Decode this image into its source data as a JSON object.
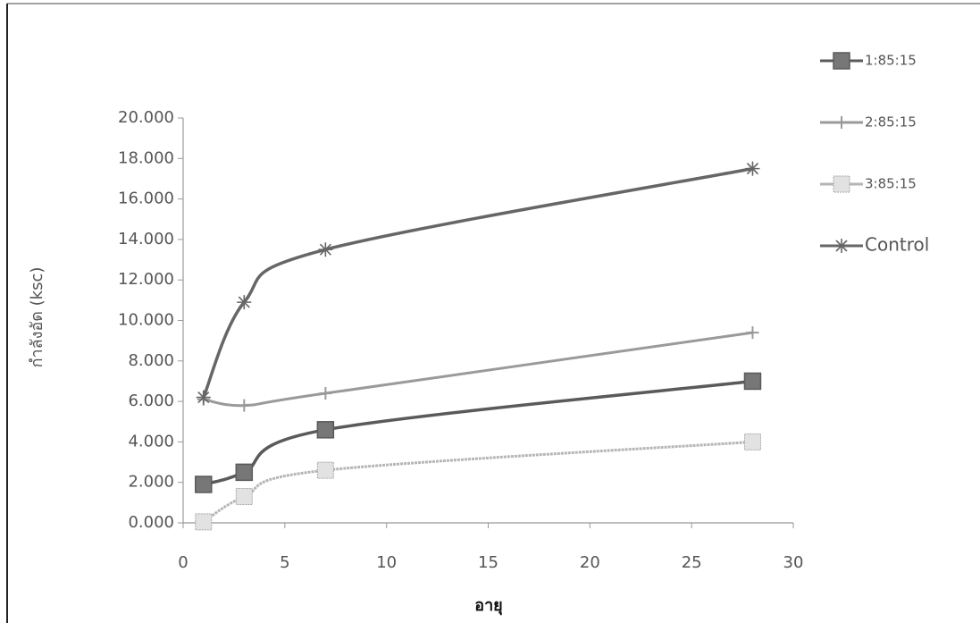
{
  "chart_data": {
    "type": "line",
    "x_label": "อายุ",
    "y_label": "กำลังอัด (ksc)",
    "xlim": [
      0,
      30
    ],
    "xticks": [
      0,
      5,
      10,
      15,
      20,
      25,
      30
    ],
    "ylim": [
      0,
      20
    ],
    "yticks": [
      {
        "value": 0,
        "label": "0.000"
      },
      {
        "value": 2,
        "label": "2.000"
      },
      {
        "value": 4,
        "label": "4.000"
      },
      {
        "value": 6,
        "label": "6.000"
      },
      {
        "value": 8,
        "label": "8.000"
      },
      {
        "value": 10,
        "label": "10.000"
      },
      {
        "value": 12,
        "label": "12.000"
      },
      {
        "value": 14,
        "label": "14.000"
      },
      {
        "value": 16,
        "label": "16.000"
      },
      {
        "value": 18,
        "label": "18.000"
      },
      {
        "value": 20,
        "label": "20.000"
      }
    ],
    "smooth": true,
    "legend": "right",
    "series": [
      {
        "name": "1:85:15",
        "color": "#5a5a5a",
        "marker": "square",
        "x": [
          1,
          3,
          7,
          28
        ],
        "values": [
          1.9,
          2.5,
          4.6,
          7.0
        ]
      },
      {
        "name": "2:85:15",
        "color": "#9a9a9a",
        "marker": "plus",
        "x": [
          1,
          3,
          7,
          28
        ],
        "values": [
          6.1,
          5.8,
          6.4,
          9.4
        ]
      },
      {
        "name": "3:85:15",
        "color": "#b5b5b5",
        "marker": "dotted-square",
        "x": [
          1,
          3,
          7,
          28
        ],
        "values": [
          0.05,
          1.3,
          2.6,
          4.0
        ]
      },
      {
        "name": "Control",
        "color": "#666666",
        "marker": "asterisk",
        "x": [
          1,
          3,
          7,
          28
        ],
        "values": [
          6.2,
          10.9,
          13.5,
          17.5
        ]
      }
    ]
  }
}
